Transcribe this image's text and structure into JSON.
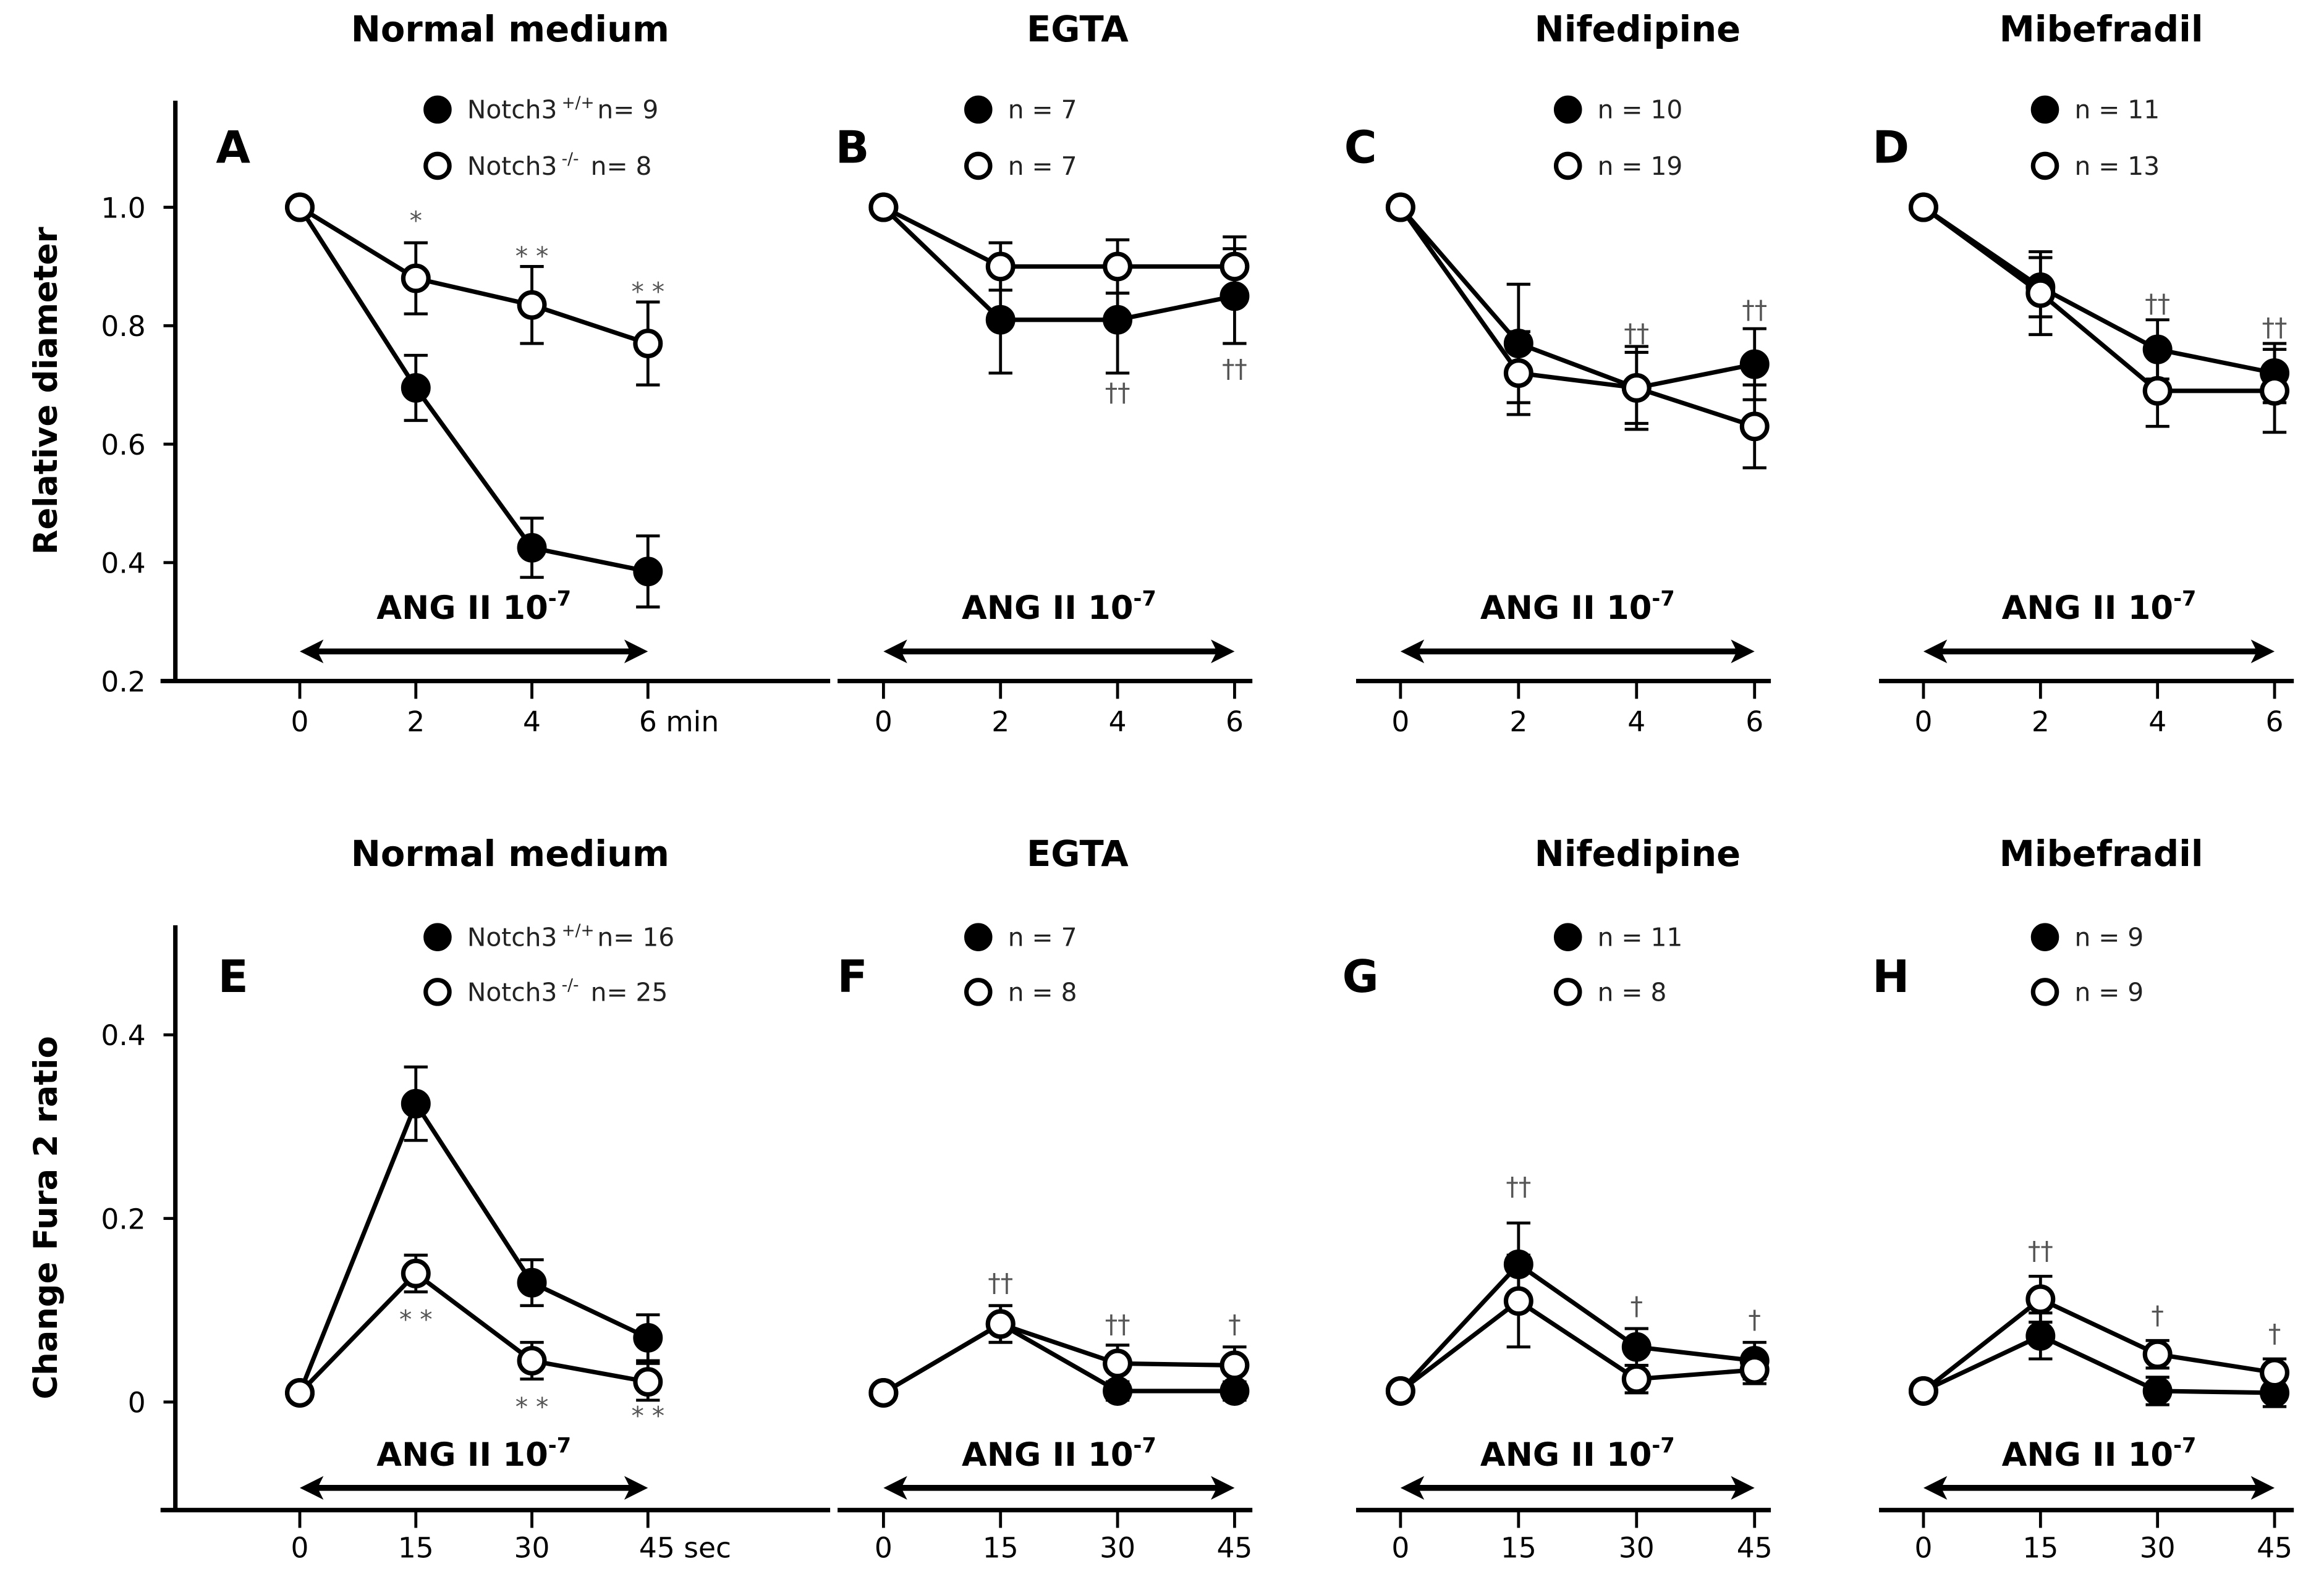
{
  "colors": {
    "ink": "#000000",
    "open_fill": "#ffffff",
    "annotation": "#555555"
  },
  "chart_data": [
    {
      "type": "line",
      "panel": "A",
      "title": "Normal medium",
      "ylabel": "Relative diameter",
      "ylim": [
        0.2,
        1.2
      ],
      "yticks": [
        "0.2",
        "0.4",
        "0.6",
        "0.8",
        "1.0"
      ],
      "ytick_values": [
        0.2,
        0.4,
        0.6,
        0.8,
        1.0
      ],
      "x": [
        0,
        2,
        4,
        6
      ],
      "xtick_labels": [
        "0",
        "2",
        "4",
        "6 min"
      ],
      "treatment": "ANG II 10",
      "treatment_exp": "-7",
      "series": [
        {
          "name": "Notch3 +/+",
          "marker": "filled",
          "legend": "Notch3",
          "sup": "+/+",
          "n": "n= 9",
          "values": [
            1.0,
            0.695,
            0.425,
            0.385
          ],
          "errors": [
            0,
            0.055,
            0.05,
            0.06
          ]
        },
        {
          "name": "Notch3 -/-",
          "marker": "open",
          "legend": "Notch3",
          "sup": "-/-",
          "n": "n= 8",
          "values": [
            1.0,
            0.88,
            0.835,
            0.77
          ],
          "errors": [
            0,
            0.06,
            0.065,
            0.07
          ]
        }
      ],
      "annotations": [
        {
          "x": 2,
          "y": 0.97,
          "text": "*"
        },
        {
          "x": 4,
          "y": 0.91,
          "text": "* *"
        },
        {
          "x": 6,
          "y": 0.85,
          "text": "* *"
        }
      ]
    },
    {
      "type": "line",
      "panel": "B",
      "title": "EGTA",
      "ylim": [
        0.2,
        1.2
      ],
      "x": [
        0,
        2,
        4,
        6
      ],
      "xtick_labels": [
        "0",
        "2",
        "4",
        "6"
      ],
      "treatment": "ANG II 10",
      "treatment_exp": "-7",
      "series": [
        {
          "marker": "filled",
          "n": "n = 7",
          "values": [
            1.0,
            0.81,
            0.81,
            0.85
          ],
          "errors": [
            0,
            0.09,
            0.09,
            0.08
          ]
        },
        {
          "marker": "open",
          "n": "n = 7",
          "values": [
            1.0,
            0.9,
            0.9,
            0.9
          ],
          "errors": [
            0,
            0.04,
            0.045,
            0.05
          ]
        }
      ],
      "annotations": [
        {
          "x": 4,
          "y": 0.68,
          "text": "††"
        },
        {
          "x": 6,
          "y": 0.72,
          "text": "††"
        }
      ]
    },
    {
      "type": "line",
      "panel": "C",
      "title": "Nifedipine",
      "ylim": [
        0.2,
        1.2
      ],
      "x": [
        0,
        2,
        4,
        6
      ],
      "xtick_labels": [
        "0",
        "2",
        "4",
        "6"
      ],
      "treatment": "ANG II 10",
      "treatment_exp": "-7",
      "series": [
        {
          "marker": "filled",
          "n": "n = 10",
          "values": [
            1.0,
            0.77,
            0.695,
            0.735
          ],
          "errors": [
            0,
            0.1,
            0.06,
            0.06
          ]
        },
        {
          "marker": "open",
          "n": "n = 19",
          "values": [
            1.0,
            0.72,
            0.695,
            0.63
          ],
          "errors": [
            0,
            0.07,
            0.07,
            0.07
          ]
        }
      ],
      "annotations": [
        {
          "x": 4,
          "y": 0.78,
          "text": "††"
        },
        {
          "x": 6,
          "y": 0.82,
          "text": "††"
        }
      ]
    },
    {
      "type": "line",
      "panel": "D",
      "title": "Mibefradil",
      "ylim": [
        0.2,
        1.2
      ],
      "x": [
        0,
        2,
        4,
        6
      ],
      "xtick_labels": [
        "0",
        "2",
        "4",
        "6"
      ],
      "treatment": "ANG II 10",
      "treatment_exp": "-7",
      "series": [
        {
          "marker": "filled",
          "n": "n = 11",
          "values": [
            1.0,
            0.865,
            0.76,
            0.72
          ],
          "errors": [
            0,
            0.05,
            0.05,
            0.05
          ]
        },
        {
          "marker": "open",
          "n": "n = 13",
          "values": [
            1.0,
            0.855,
            0.69,
            0.69
          ],
          "errors": [
            0,
            0.07,
            0.06,
            0.07
          ]
        }
      ],
      "annotations": [
        {
          "x": 4,
          "y": 0.83,
          "text": "††"
        },
        {
          "x": 6,
          "y": 0.79,
          "text": "††"
        }
      ]
    },
    {
      "type": "line",
      "panel": "E",
      "title": "Normal medium",
      "ylabel": "Change Fura 2 ratio",
      "ylim": [
        -0.12,
        0.52
      ],
      "yticks": [
        "0",
        "0.2",
        "0.4"
      ],
      "ytick_values": [
        0,
        0.2,
        0.4
      ],
      "x": [
        0,
        15,
        30,
        45
      ],
      "xtick_labels": [
        "0",
        "15",
        "30",
        "45 sec"
      ],
      "treatment": "ANG II 10",
      "treatment_exp": "-7",
      "series": [
        {
          "name": "Notch3 +/+",
          "marker": "filled",
          "legend": "Notch3",
          "sup": "+/+",
          "n": "n= 16",
          "values": [
            0.01,
            0.325,
            0.13,
            0.07
          ],
          "errors": [
            0,
            0.04,
            0.025,
            0.025
          ]
        },
        {
          "name": "Notch3 -/-",
          "marker": "open",
          "legend": "Notch3",
          "sup": "-/-",
          "n": "n= 25",
          "values": [
            0.01,
            0.14,
            0.045,
            0.022
          ],
          "errors": [
            0,
            0.02,
            0.02,
            0.02
          ]
        }
      ],
      "annotations": [
        {
          "x": 15,
          "y": 0.085,
          "text": "* *"
        },
        {
          "x": 30,
          "y": -0.01,
          "text": "* *"
        },
        {
          "x": 45,
          "y": -0.02,
          "text": "* *"
        }
      ]
    },
    {
      "type": "line",
      "panel": "F",
      "title": "EGTA",
      "ylim": [
        -0.12,
        0.52
      ],
      "x": [
        0,
        15,
        30,
        45
      ],
      "xtick_labels": [
        "0",
        "15",
        "30",
        "45"
      ],
      "treatment": "ANG II 10",
      "treatment_exp": "-7",
      "series": [
        {
          "marker": "filled",
          "n": "n = 7",
          "values": [
            0.01,
            0.085,
            0.012,
            0.012
          ],
          "errors": [
            0,
            0.02,
            0.01,
            0.01
          ]
        },
        {
          "marker": "open",
          "n": "n = 8",
          "values": [
            0.01,
            0.085,
            0.042,
            0.04
          ],
          "errors": [
            0,
            0.02,
            0.02,
            0.02
          ]
        }
      ],
      "annotations": [
        {
          "x": 15,
          "y": 0.125,
          "text": "††"
        },
        {
          "x": 30,
          "y": 0.08,
          "text": "††"
        },
        {
          "x": 45,
          "y": 0.08,
          "text": "†"
        }
      ]
    },
    {
      "type": "line",
      "panel": "G",
      "title": "Nifedipine",
      "ylim": [
        -0.12,
        0.52
      ],
      "x": [
        0,
        15,
        30,
        45
      ],
      "xtick_labels": [
        "0",
        "15",
        "30",
        "45"
      ],
      "treatment": "ANG II 10",
      "treatment_exp": "-7",
      "series": [
        {
          "marker": "filled",
          "n": "n = 11",
          "values": [
            0.012,
            0.15,
            0.06,
            0.045
          ],
          "errors": [
            0,
            0.045,
            0.02,
            0.02
          ]
        },
        {
          "marker": "open",
          "n": "n = 8",
          "values": [
            0.012,
            0.11,
            0.025,
            0.035
          ],
          "errors": [
            0,
            0.05,
            0.015,
            0.015
          ]
        }
      ],
      "annotations": [
        {
          "x": 15,
          "y": 0.23,
          "text": "††"
        },
        {
          "x": 30,
          "y": 0.1,
          "text": "†"
        },
        {
          "x": 45,
          "y": 0.085,
          "text": "†"
        }
      ]
    },
    {
      "type": "line",
      "panel": "H",
      "title": "Mibefradil",
      "ylim": [
        -0.12,
        0.52
      ],
      "x": [
        0,
        15,
        30,
        45
      ],
      "xtick_labels": [
        "0",
        "15",
        "30",
        "45"
      ],
      "treatment": "ANG II 10",
      "treatment_exp": "-7",
      "series": [
        {
          "marker": "filled",
          "n": "n = 9",
          "values": [
            0.012,
            0.072,
            0.012,
            0.01
          ],
          "errors": [
            0,
            0.025,
            0.015,
            0.015
          ]
        },
        {
          "marker": "open",
          "n": "n = 9",
          "values": [
            0.012,
            0.112,
            0.052,
            0.032
          ],
          "errors": [
            0,
            0.025,
            0.015,
            0.015
          ]
        }
      ],
      "annotations": [
        {
          "x": 15,
          "y": 0.16,
          "text": "††"
        },
        {
          "x": 30,
          "y": 0.09,
          "text": "†"
        },
        {
          "x": 45,
          "y": 0.07,
          "text": "†"
        }
      ]
    }
  ]
}
